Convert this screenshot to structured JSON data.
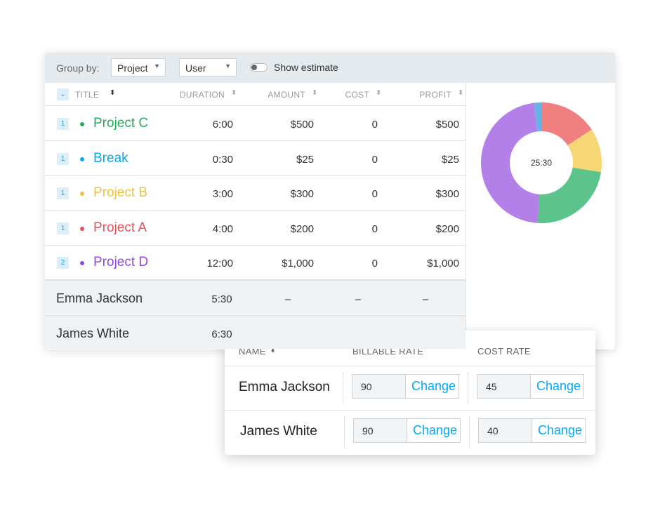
{
  "toolbar": {
    "group_by_label": "Group by:",
    "group_select": "Project",
    "user_select": "User",
    "toggle_label": "Show estimate"
  },
  "table": {
    "columns": [
      "TITLE",
      "DURATION",
      "AMOUNT",
      "COST",
      "PROFIT"
    ],
    "rows": [
      {
        "count": "1",
        "title": "Project C",
        "color": "#1fae5b",
        "duration": "6:00",
        "amount": "$500",
        "cost": "0",
        "profit": "$500"
      },
      {
        "count": "1",
        "title": "Break",
        "color": "#03a9f4",
        "duration": "0:30",
        "amount": "$25",
        "cost": "0",
        "profit": "$25"
      },
      {
        "count": "1",
        "title": "Project B",
        "color": "#f0c23c",
        "duration": "3:00",
        "amount": "$300",
        "cost": "0",
        "profit": "$300"
      },
      {
        "count": "1",
        "title": "Project A",
        "color": "#e8505b",
        "duration": "4:00",
        "amount": "$200",
        "cost": "0",
        "profit": "$200"
      },
      {
        "count": "2",
        "title": "Project D",
        "color": "#9147e6",
        "duration": "12:00",
        "amount": "$1,000",
        "cost": "0",
        "profit": "$1,000"
      }
    ],
    "user_rows": [
      {
        "name": "Emma Jackson",
        "duration": "5:30",
        "amount": "–",
        "cost": "–",
        "profit": "–"
      },
      {
        "name": "James White",
        "duration": "6:30"
      }
    ]
  },
  "donut": {
    "center_label": "25:30",
    "segments": [
      {
        "value": 4,
        "color": "#f07f7f"
      },
      {
        "value": 3,
        "color": "#f7d774"
      },
      {
        "value": 6,
        "color": "#5cc48a"
      },
      {
        "value": 12,
        "color": "#b280e8"
      },
      {
        "value": 0.5,
        "color": "#65b4e6"
      }
    ]
  },
  "rates": {
    "columns": [
      "NAME",
      "BILLABLE RATE",
      "COST RATE"
    ],
    "change_label": "Change",
    "rows": [
      {
        "name": "Emma Jackson",
        "billable_rate": 90,
        "cost_rate": 45
      },
      {
        "name": "James White",
        "billable_rate": 90,
        "cost_rate": 40
      }
    ]
  }
}
